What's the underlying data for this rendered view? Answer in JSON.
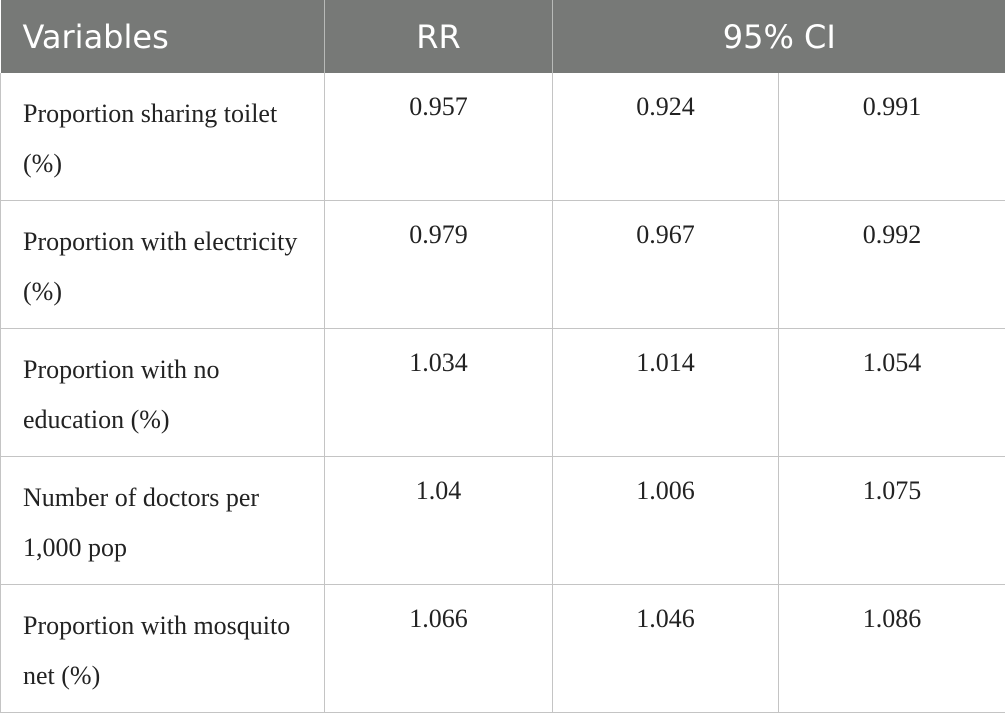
{
  "table": {
    "headers": {
      "variables": "Variables",
      "rr": "RR",
      "ci": "95% CI"
    },
    "rows": [
      {
        "variable": "Proportion sharing toilet (%)",
        "rr": "0.957",
        "ci_low": "0.924",
        "ci_high": "0.991"
      },
      {
        "variable": "Proportion with electricity (%)",
        "rr": "0.979",
        "ci_low": "0.967",
        "ci_high": "0.992"
      },
      {
        "variable": "Proportion with no education (%)",
        "rr": "1.034",
        "ci_low": "1.014",
        "ci_high": "1.054"
      },
      {
        "variable": "Number of doctors per 1,000 pop",
        "rr": "1.04",
        "ci_low": "1.006",
        "ci_high": "1.075"
      },
      {
        "variable": "Proportion with mosquito net (%)",
        "rr": "1.066",
        "ci_low": "1.046",
        "ci_high": "1.086"
      }
    ]
  },
  "colors": {
    "header_bg": "#777977",
    "header_text": "#ffffff",
    "grid": "#c4c4c4"
  }
}
